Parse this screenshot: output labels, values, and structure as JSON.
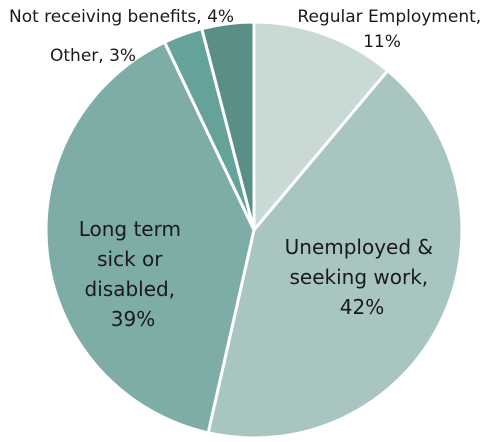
{
  "chart_data": {
    "type": "pie",
    "title": "",
    "start": "top",
    "direction": "clockwise",
    "slices": [
      {
        "label": "Regular Employment",
        "value": 11,
        "display": [
          "Regular Employment,",
          "11%"
        ],
        "color": "#c8d9d6"
      },
      {
        "label": "Unemployed & seeking work",
        "value": 42,
        "display": [
          "Unemployed &",
          "seeking work,",
          "42%"
        ],
        "color": "#a9c5c1"
      },
      {
        "label": "Long term sick or disabled",
        "value": 39,
        "display": [
          "Long term",
          "sick or",
          "disabled,",
          "39%"
        ],
        "color": "#7eaca6"
      },
      {
        "label": "Other",
        "value": 3,
        "display": [
          "Other, 3%"
        ],
        "color": "#65a29a"
      },
      {
        "label": "Not receiving benefits",
        "value": 4,
        "display": [
          "Not receiving benefits, 4%"
        ],
        "color": "#5a8f87"
      }
    ]
  }
}
